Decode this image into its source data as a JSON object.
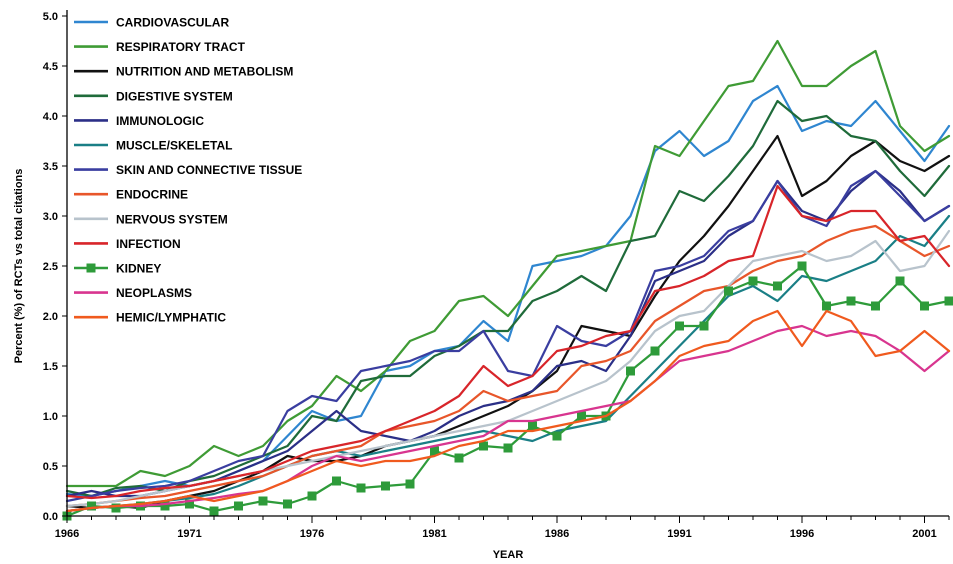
{
  "chart_data": {
    "type": "line",
    "title": "",
    "xlabel": "YEAR",
    "ylabel": "Percent (%) of RCTs vs total citations",
    "xlim": [
      1966,
      2002
    ],
    "ylim": [
      0,
      5.0
    ],
    "x_ticks": [
      1966,
      1971,
      1976,
      1981,
      1986,
      1991,
      1996,
      2001
    ],
    "y_ticks": [
      "0.0",
      "0.5",
      "1.0",
      "1.5",
      "2.0",
      "2.5",
      "3.0",
      "3.5",
      "4.0",
      "4.5",
      "5.0"
    ],
    "grid": false,
    "legend_position": "top-left",
    "x": [
      1966,
      1967,
      1968,
      1969,
      1970,
      1971,
      1972,
      1973,
      1974,
      1975,
      1976,
      1977,
      1978,
      1979,
      1980,
      1981,
      1982,
      1983,
      1984,
      1985,
      1986,
      1987,
      1988,
      1989,
      1990,
      1991,
      1992,
      1993,
      1994,
      1995,
      1996,
      1997,
      1998,
      1999,
      2000,
      2001,
      2002
    ],
    "series": [
      {
        "name": "CARDIOVASCULAR",
        "color": "#2f86d0",
        "marker": "none",
        "values": [
          0.22,
          0.2,
          0.25,
          0.3,
          0.35,
          0.3,
          0.35,
          0.45,
          0.55,
          0.8,
          1.05,
          0.95,
          1.0,
          1.45,
          1.5,
          1.65,
          1.7,
          1.95,
          1.75,
          2.5,
          2.55,
          2.6,
          2.7,
          3.0,
          3.65,
          3.85,
          3.6,
          3.75,
          4.15,
          4.3,
          3.85,
          3.95,
          3.9,
          4.15,
          3.85,
          3.55,
          3.9
        ]
      },
      {
        "name": "RESPIRATORY TRACT",
        "color": "#3f9b35",
        "marker": "none",
        "values": [
          0.3,
          0.3,
          0.3,
          0.45,
          0.4,
          0.5,
          0.7,
          0.6,
          0.7,
          0.95,
          1.1,
          1.4,
          1.25,
          1.45,
          1.75,
          1.85,
          2.15,
          2.2,
          2.0,
          2.3,
          2.6,
          2.65,
          2.7,
          2.75,
          3.7,
          3.6,
          3.95,
          4.3,
          4.35,
          4.75,
          4.3,
          4.3,
          4.5,
          4.65,
          3.9,
          3.65,
          3.8
        ]
      },
      {
        "name": "NUTRITION AND METABOLISM",
        "color": "#111111",
        "marker": "none",
        "values": [
          0.1,
          0.08,
          0.1,
          0.08,
          0.15,
          0.2,
          0.25,
          0.35,
          0.45,
          0.6,
          0.55,
          0.55,
          0.6,
          0.7,
          0.75,
          0.8,
          0.9,
          1.0,
          1.1,
          1.25,
          1.45,
          1.9,
          1.85,
          1.8,
          2.2,
          2.55,
          2.8,
          3.1,
          3.45,
          3.8,
          3.2,
          3.35,
          3.6,
          3.75,
          3.55,
          3.45,
          3.6
        ]
      },
      {
        "name": "DIGESTIVE SYSTEM",
        "color": "#1f6b3a",
        "marker": "none",
        "values": [
          0.25,
          0.2,
          0.28,
          0.3,
          0.25,
          0.35,
          0.4,
          0.5,
          0.6,
          0.7,
          1.0,
          0.95,
          1.35,
          1.4,
          1.4,
          1.6,
          1.7,
          1.85,
          1.85,
          2.15,
          2.25,
          2.4,
          2.25,
          2.75,
          2.8,
          3.25,
          3.15,
          3.4,
          3.7,
          4.15,
          3.95,
          4.0,
          3.8,
          3.75,
          3.45,
          3.2,
          3.5
        ]
      },
      {
        "name": "IMMUNOLOGIC",
        "color": "#2b2f87",
        "marker": "none",
        "values": [
          0.2,
          0.25,
          0.2,
          0.2,
          0.25,
          0.3,
          0.35,
          0.45,
          0.55,
          0.65,
          0.85,
          1.05,
          0.85,
          0.8,
          0.75,
          0.85,
          1.0,
          1.1,
          1.15,
          1.25,
          1.5,
          1.55,
          1.45,
          1.8,
          2.35,
          2.45,
          2.55,
          2.8,
          2.95,
          3.35,
          3.05,
          2.95,
          3.25,
          3.45,
          3.25,
          2.95,
          3.1
        ]
      },
      {
        "name": "MUSCLE/SKELETAL",
        "color": "#1a7f86",
        "marker": "none",
        "values": [
          0.05,
          0.08,
          0.1,
          0.12,
          0.15,
          0.18,
          0.22,
          0.3,
          0.4,
          0.5,
          0.6,
          0.65,
          0.6,
          0.65,
          0.7,
          0.75,
          0.8,
          0.85,
          0.8,
          0.75,
          0.85,
          0.9,
          0.95,
          1.2,
          1.45,
          1.7,
          1.95,
          2.2,
          2.3,
          2.15,
          2.4,
          2.35,
          2.45,
          2.55,
          2.8,
          2.7,
          3.0
        ]
      },
      {
        "name": "SKIN AND CONNECTIVE TISSUE",
        "color": "#3a3ea0",
        "marker": "none",
        "values": [
          0.15,
          0.2,
          0.25,
          0.28,
          0.3,
          0.35,
          0.45,
          0.55,
          0.6,
          1.05,
          1.2,
          1.15,
          1.45,
          1.5,
          1.55,
          1.65,
          1.65,
          1.85,
          1.45,
          1.4,
          1.9,
          1.75,
          1.7,
          1.85,
          2.45,
          2.5,
          2.6,
          2.85,
          2.95,
          3.35,
          3.0,
          2.9,
          3.3,
          3.45,
          3.2,
          2.95,
          3.1
        ]
      },
      {
        "name": "ENDOCRINE",
        "color": "#e8562a",
        "marker": "none",
        "values": [
          0.1,
          0.12,
          0.15,
          0.18,
          0.2,
          0.25,
          0.3,
          0.35,
          0.4,
          0.5,
          0.6,
          0.65,
          0.7,
          0.85,
          0.9,
          0.95,
          1.05,
          1.25,
          1.15,
          1.2,
          1.25,
          1.5,
          1.55,
          1.65,
          1.95,
          2.1,
          2.25,
          2.3,
          2.45,
          2.55,
          2.6,
          2.75,
          2.85,
          2.9,
          2.75,
          2.6,
          2.7
        ]
      },
      {
        "name": "NERVOUS SYSTEM",
        "color": "#b8c3cc",
        "marker": "none",
        "values": [
          0.1,
          0.12,
          0.15,
          0.2,
          0.25,
          0.3,
          0.35,
          0.4,
          0.45,
          0.5,
          0.55,
          0.6,
          0.65,
          0.7,
          0.75,
          0.8,
          0.85,
          0.9,
          0.95,
          1.05,
          1.15,
          1.25,
          1.35,
          1.55,
          1.85,
          2.0,
          2.05,
          2.3,
          2.55,
          2.6,
          2.65,
          2.55,
          2.6,
          2.75,
          2.45,
          2.5,
          2.85
        ]
      },
      {
        "name": "INFECTION",
        "color": "#d8252a",
        "marker": "none",
        "values": [
          0.2,
          0.18,
          0.2,
          0.25,
          0.28,
          0.3,
          0.35,
          0.4,
          0.45,
          0.55,
          0.65,
          0.7,
          0.75,
          0.85,
          0.95,
          1.05,
          1.2,
          1.5,
          1.3,
          1.4,
          1.65,
          1.7,
          1.8,
          1.85,
          2.25,
          2.3,
          2.4,
          2.55,
          2.6,
          3.3,
          3.0,
          2.95,
          3.05,
          3.05,
          2.75,
          2.8,
          2.5
        ]
      },
      {
        "name": "KIDNEY",
        "color": "#2e9b3a",
        "marker": "square",
        "values": [
          0.0,
          0.1,
          0.08,
          0.1,
          0.1,
          0.12,
          0.05,
          0.1,
          0.15,
          0.12,
          0.2,
          0.35,
          0.28,
          0.3,
          0.32,
          0.65,
          0.58,
          0.7,
          0.68,
          0.9,
          0.8,
          1.0,
          1.0,
          1.45,
          1.65,
          1.9,
          1.9,
          2.25,
          2.35,
          2.3,
          2.5,
          2.1,
          2.15,
          2.1,
          2.35,
          2.1,
          2.15
        ]
      },
      {
        "name": "NEOPLASMS",
        "color": "#d8358f",
        "marker": "none",
        "values": [
          0.05,
          0.08,
          0.1,
          0.1,
          0.12,
          0.15,
          0.18,
          0.22,
          0.25,
          0.35,
          0.5,
          0.6,
          0.55,
          0.6,
          0.65,
          0.7,
          0.75,
          0.8,
          0.95,
          0.95,
          1.0,
          1.05,
          1.1,
          1.15,
          1.35,
          1.55,
          1.6,
          1.65,
          1.75,
          1.85,
          1.9,
          1.8,
          1.85,
          1.8,
          1.65,
          1.45,
          1.65
        ]
      },
      {
        "name": "HEMIC/LYMPHATIC",
        "color": "#f05a1e",
        "marker": "none",
        "values": [
          0.05,
          0.08,
          0.1,
          0.12,
          0.15,
          0.2,
          0.15,
          0.2,
          0.25,
          0.35,
          0.45,
          0.55,
          0.5,
          0.55,
          0.55,
          0.6,
          0.7,
          0.75,
          0.85,
          0.85,
          0.9,
          0.95,
          1.0,
          1.15,
          1.35,
          1.6,
          1.7,
          1.75,
          1.95,
          2.05,
          1.7,
          2.05,
          1.95,
          1.6,
          1.65,
          1.85,
          1.65
        ]
      }
    ]
  }
}
